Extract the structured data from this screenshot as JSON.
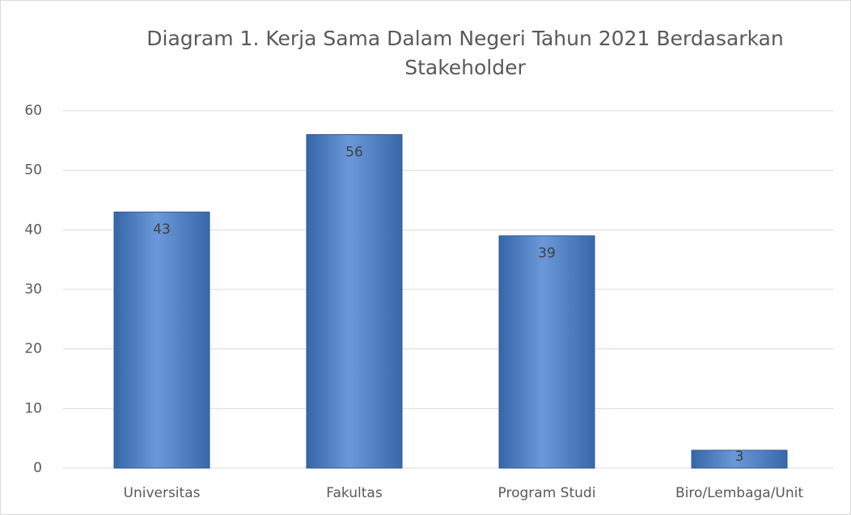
{
  "chart_data": {
    "type": "bar",
    "title": "Diagram 1. Kerja Sama Dalam Negeri Tahun 2021 Berdasarkan Stakeholder",
    "categories": [
      "Universitas",
      "Fakultas",
      "Program Studi",
      "Biro/Lembaga/Unit"
    ],
    "values": [
      43,
      56,
      39,
      3
    ],
    "color": "#4f81bd",
    "ylim": [
      0,
      60
    ],
    "yticks": [
      0,
      10,
      20,
      30,
      40,
      50,
      60
    ],
    "grid": true
  }
}
